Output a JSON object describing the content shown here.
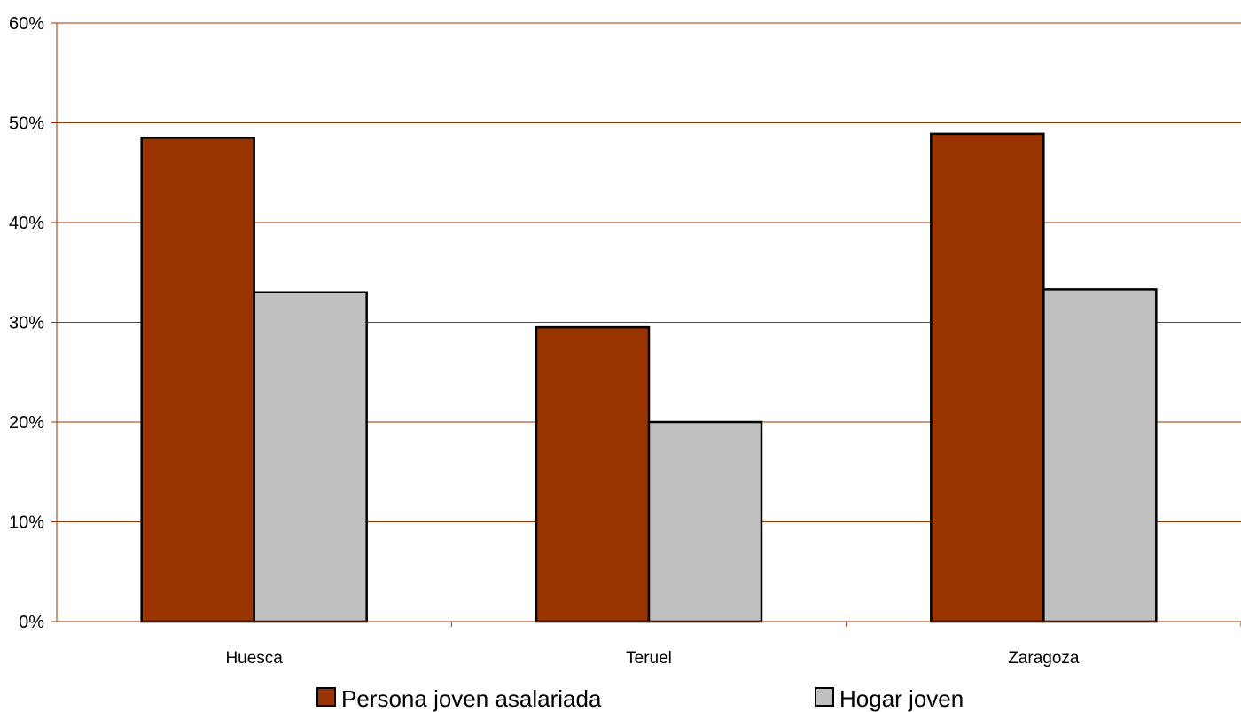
{
  "chart_data": {
    "type": "bar",
    "title": "",
    "xlabel": "",
    "ylabel": "",
    "categories": [
      "Huesca",
      "Teruel",
      "Zaragoza"
    ],
    "series": [
      {
        "name": "Persona joven asalariada",
        "values": [
          48.5,
          29.5,
          48.9
        ],
        "color": "#993300"
      },
      {
        "name": "Hogar joven",
        "values": [
          33.0,
          20.0,
          33.3
        ],
        "color": "#c0c0c0"
      }
    ],
    "ylim": [
      0,
      60
    ],
    "yticks": [
      0,
      10,
      20,
      30,
      40,
      50,
      60
    ],
    "ytick_labels": [
      "0%",
      "10%",
      "20%",
      "30%",
      "40%",
      "50%",
      "60%"
    ],
    "grid": true,
    "grid_color": "#993300",
    "legend_position": "bottom"
  }
}
